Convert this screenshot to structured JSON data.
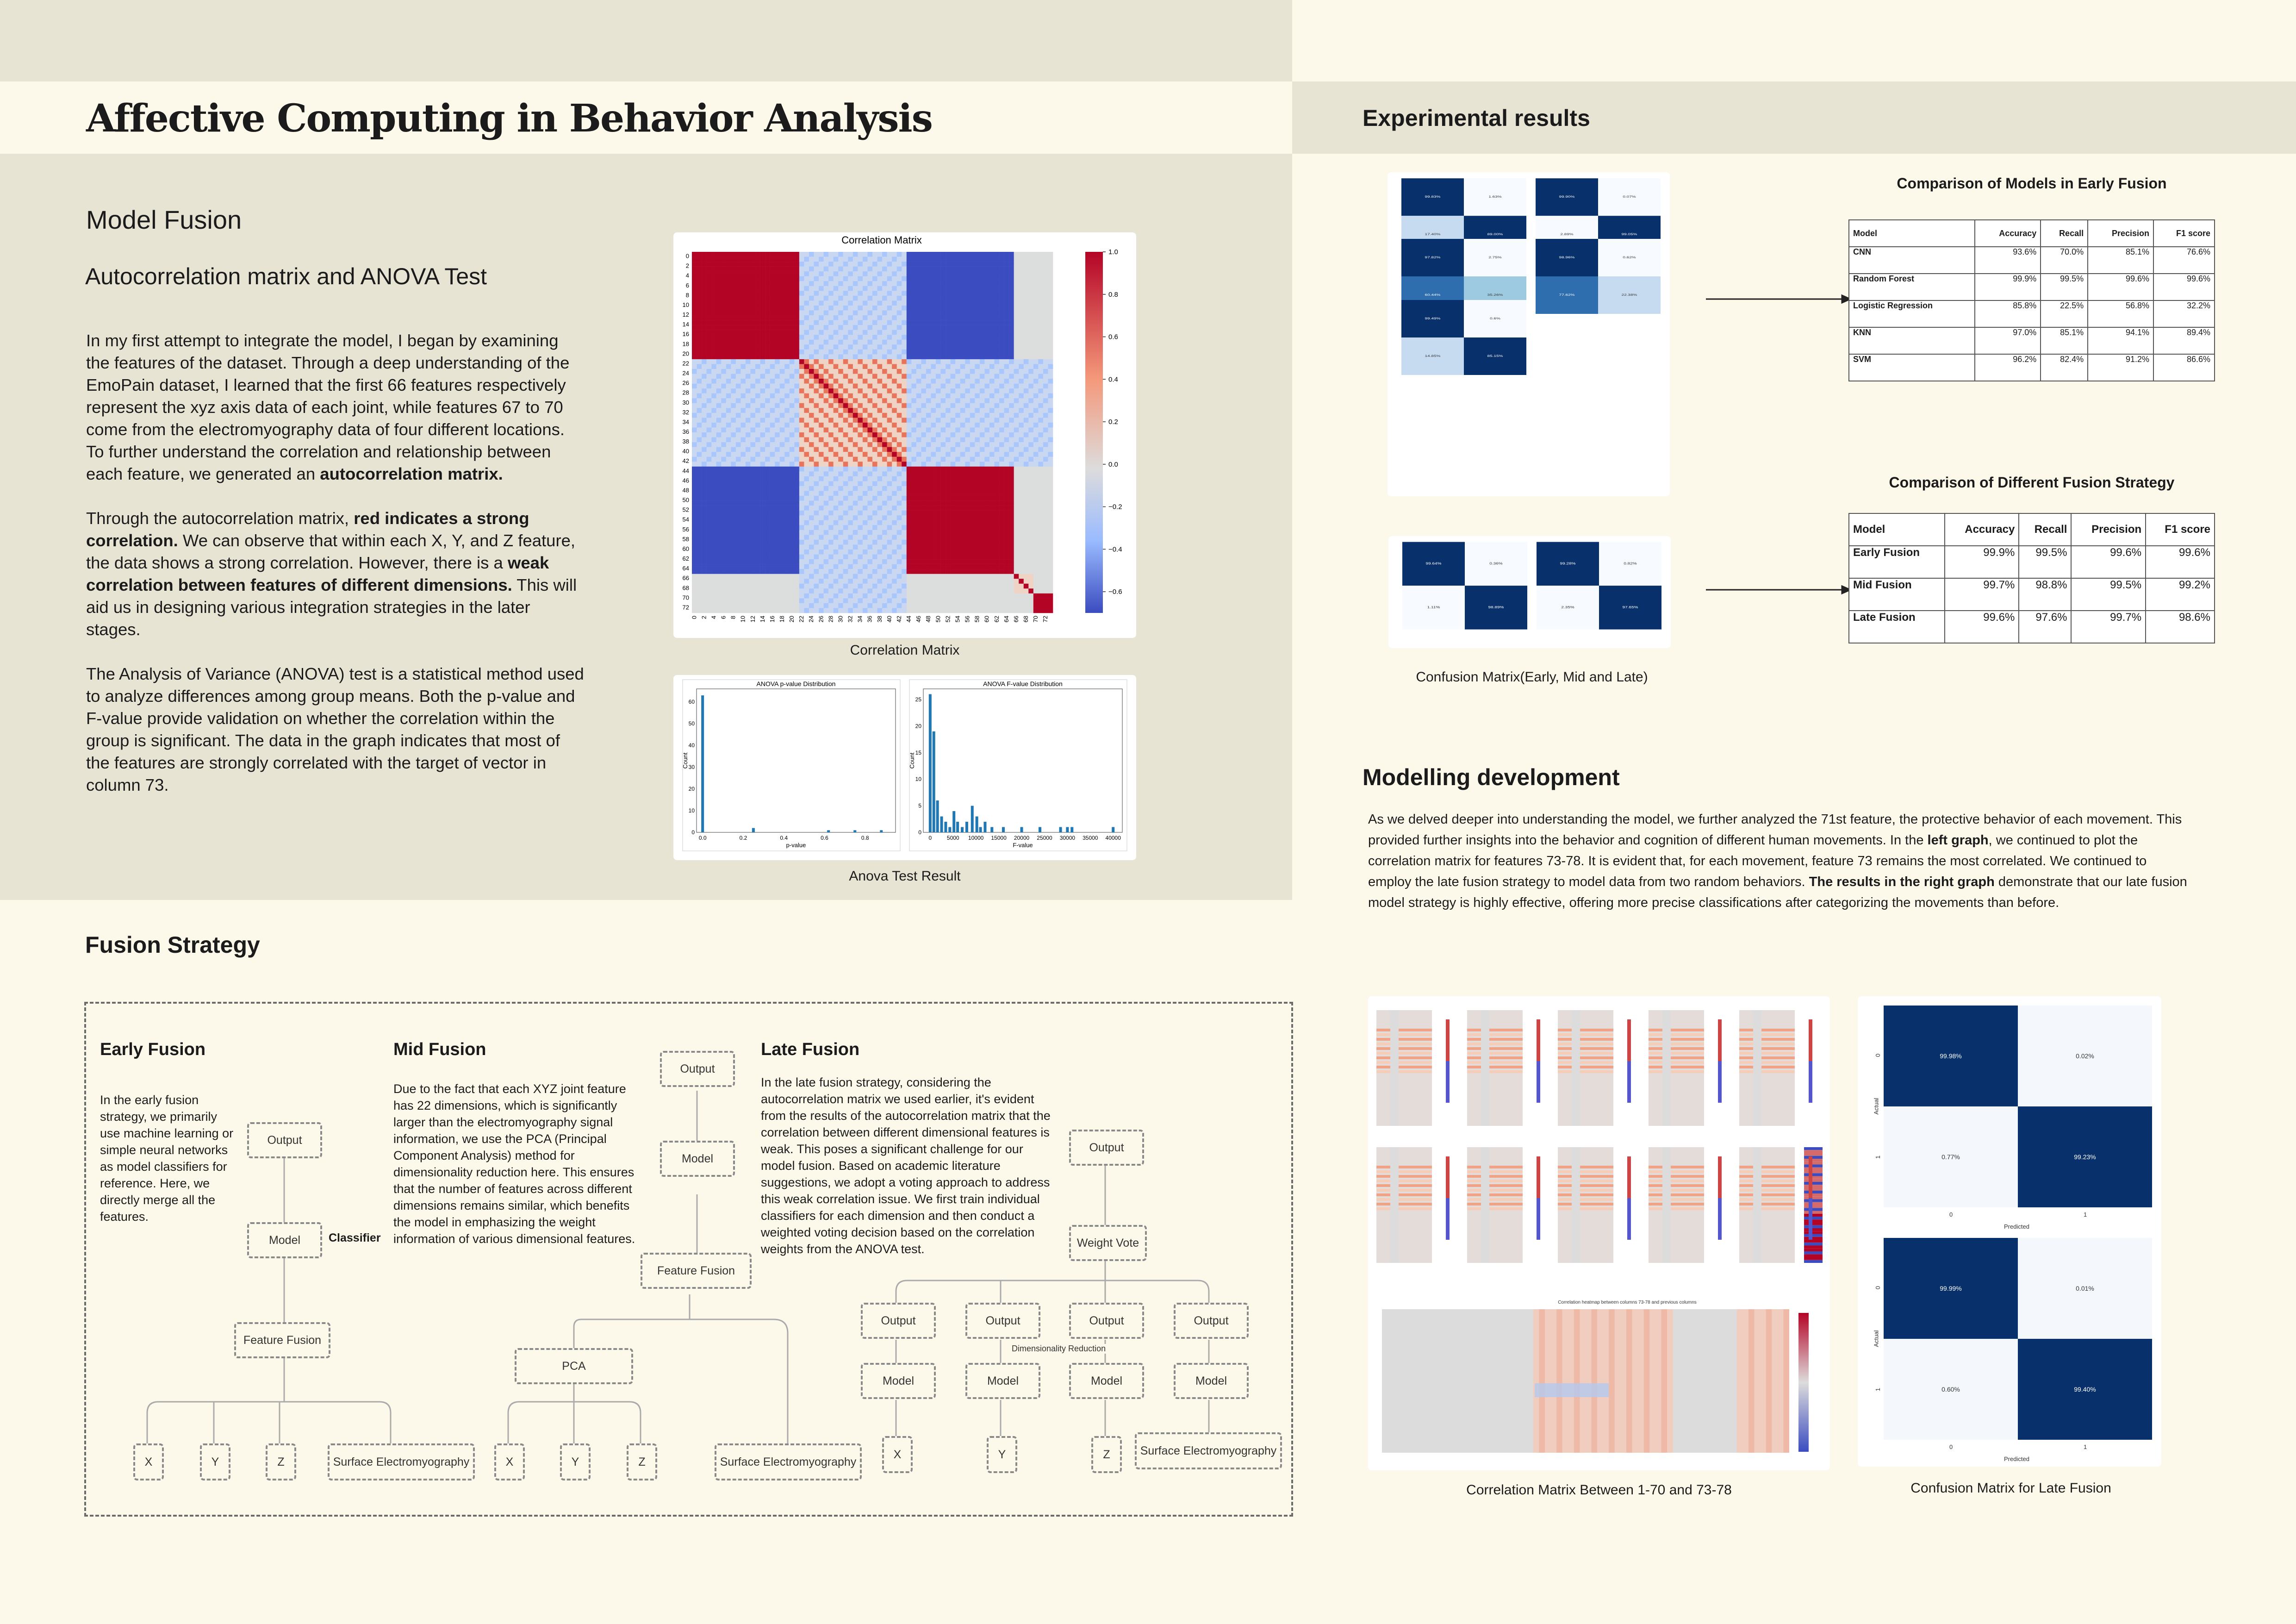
{
  "poster_title": "Affective Computing in Behavior Analysis",
  "model_fusion": {
    "heading": "Model Fusion",
    "subheading": "Autocorrelation matrix and ANOVA Test",
    "p1_pre": "In my first attempt to integrate the model, I began by examining the features of the dataset. Through a deep understanding of the EmoPain dataset, I learned that the first 66 features respectively represent the xyz axis data of each joint, while features 67 to 70 come from the electromyography data of four different locations. To further understand the correlation and relationship between each feature, we generated an ",
    "p1_bold": "autocorrelation matrix.",
    "p2_a": "Through the autocorrelation matrix, ",
    "p2_b": "red indicates a strong correlation.",
    "p2_c": " We can observe that within each X, Y, and Z feature, the data shows a strong correlation. However, there is a ",
    "p2_d": "weak correlation between features of different dimensions.",
    "p2_e": " This will aid us in designing various integration strategies in the later stages.",
    "p3": "The Analysis of Variance (ANOVA) test is a statistical method used to analyze differences among group means. Both the p-value and F-value provide validation on whether the correlation within the group is significant. The data in the graph indicates that most of the features are strongly correlated with the target of vector in column 73.",
    "corr_title": "Correlation Matrix",
    "corr_caption": "Correlation Matrix",
    "anova_caption": "Anova Test Result"
  },
  "chart_data": [
    {
      "type": "heatmap",
      "title": "Correlation Matrix",
      "y_ticks": [
        "0",
        "2",
        "4",
        "6",
        "8",
        "10",
        "12",
        "14",
        "16",
        "18",
        "20",
        "22",
        "24",
        "26",
        "28",
        "30",
        "32",
        "34",
        "36",
        "38",
        "40",
        "42",
        "44",
        "46",
        "48",
        "50",
        "52",
        "54",
        "56",
        "58",
        "60",
        "62",
        "64",
        "66",
        "68",
        "70",
        "72"
      ],
      "x_ticks": [
        "0",
        "2",
        "4",
        "6",
        "8",
        "10",
        "12",
        "14",
        "16",
        "18",
        "20",
        "22",
        "24",
        "26",
        "28",
        "30",
        "32",
        "34",
        "36",
        "38",
        "40",
        "42",
        "44",
        "46",
        "48",
        "50",
        "52",
        "54",
        "56",
        "58",
        "60",
        "62",
        "64",
        "66",
        "68",
        "70",
        "72"
      ],
      "colorbar_ticks": [
        "1.0",
        "0.8",
        "0.6",
        "0.4",
        "0.2",
        "0.0",
        "−0.2",
        "−0.4",
        "−0.6"
      ],
      "colorbar_range": [
        -0.7,
        1.0
      ]
    },
    {
      "type": "bar",
      "title": "ANOVA p-value Distribution",
      "xlabel": "p-value",
      "ylabel": "Count",
      "x_ticks": [
        "0.0",
        "0.2",
        "0.4",
        "0.6",
        "0.8"
      ],
      "y_ticks": [
        "0",
        "10",
        "20",
        "30",
        "40",
        "50",
        "60"
      ],
      "xlim": [
        -0.03,
        0.95
      ],
      "ylim": [
        0,
        66
      ],
      "bins": [
        [
          0.0,
          63
        ],
        [
          0.25,
          2
        ],
        [
          0.62,
          1
        ],
        [
          0.75,
          1
        ],
        [
          0.88,
          1
        ]
      ]
    },
    {
      "type": "bar",
      "title": "ANOVA F-value Distribution",
      "xlabel": "F-value",
      "ylabel": "Count",
      "x_ticks": [
        "0",
        "5000",
        "10000",
        "15000",
        "20000",
        "25000",
        "30000",
        "35000",
        "40000"
      ],
      "y_ticks": [
        "0",
        "5",
        "10",
        "15",
        "20",
        "25"
      ],
      "xlim": [
        -1500,
        42000
      ],
      "ylim": [
        0,
        27
      ],
      "bins": [
        [
          0,
          26
        ],
        [
          800,
          19
        ],
        [
          1600,
          6
        ],
        [
          2500,
          3
        ],
        [
          3400,
          2
        ],
        [
          4300,
          1
        ],
        [
          5200,
          4
        ],
        [
          6000,
          2
        ],
        [
          7000,
          1
        ],
        [
          8000,
          2
        ],
        [
          9200,
          5
        ],
        [
          10200,
          3
        ],
        [
          11000,
          1
        ],
        [
          12000,
          2
        ],
        [
          13500,
          1
        ],
        [
          16000,
          1
        ],
        [
          20000,
          1
        ],
        [
          24000,
          1
        ],
        [
          28500,
          1
        ],
        [
          30000,
          1
        ],
        [
          31000,
          1
        ],
        [
          40000,
          1
        ]
      ]
    }
  ],
  "fusion_strategy": {
    "heading": "Fusion Strategy",
    "early": {
      "title": "Early Fusion",
      "text": "In the early fusion strategy, we primarily use machine learning or simple neural networks as model classifiers for reference. Here, we directly merge all the features.",
      "output": "Output",
      "model": "Model",
      "classifier": "Classifier",
      "feature_fusion": "Feature Fusion",
      "inputs": [
        "X",
        "Y",
        "Z",
        "Surface Electromyography"
      ]
    },
    "mid": {
      "title": "Mid Fusion",
      "text": "Due to the fact that each XYZ joint feature has 22 dimensions, which is significantly larger than the electromyography signal information, we use the PCA (Principal Component Analysis) method for dimensionality reduction here. This ensures that the number of features across different dimensions remains similar, which benefits the model in emphasizing the weight information of various dimensional features.",
      "output": "Output",
      "model": "Model",
      "feature_fusion": "Feature Fusion",
      "pca": "PCA",
      "inputs": [
        "X",
        "Y",
        "Z",
        "Surface Electromyography"
      ]
    },
    "late": {
      "title": "Late Fusion",
      "text": "In the late fusion strategy, considering the autocorrelation matrix we used earlier, it's evident from the results of the autocorrelation matrix that the correlation between different dimensional features is weak. This poses a significant challenge for our model fusion. Based on academic literature suggestions, we adopt a voting approach to address this weak correlation issue. We first train individual classifiers for each dimension and then conduct a weighted voting decision based on the correlation weights from the ANOVA test.",
      "output": "Output",
      "weight_vote": "Weight Vote",
      "dim_reduction": "Dimensionality Reduction",
      "outputs": [
        "Output",
        "Output",
        "Output",
        "Output"
      ],
      "models": [
        "Model",
        "Model",
        "Model",
        "Model"
      ],
      "inputs": [
        "X",
        "Y",
        "Z",
        "Surface Electromyography"
      ]
    }
  },
  "experimental": {
    "heading": "Experimental results",
    "table1_title": "Comparison of Models in Early Fusion",
    "table1_headers": [
      "Model",
      "Accuracy",
      "Recall",
      "Precision",
      "F1 score"
    ],
    "table1_rows": [
      [
        "CNN",
        "93.6%",
        "70.0%",
        "85.1%",
        "76.6%"
      ],
      [
        "Random Forest",
        "99.9%",
        "99.5%",
        "99.6%",
        "99.6%"
      ],
      [
        "Logistic Regression",
        "85.8%",
        "22.5%",
        "56.8%",
        "32.2%"
      ],
      [
        "KNN",
        "97.0%",
        "85.1%",
        "94.1%",
        "89.4%"
      ],
      [
        "SVM",
        "96.2%",
        "82.4%",
        "91.2%",
        "86.6%"
      ]
    ],
    "table2_title": "Comparison of Different Fusion Strategy",
    "table2_headers": [
      "Model",
      "Accuracy",
      "Recall",
      "Precision",
      "F1 score"
    ],
    "table2_rows": [
      [
        "Early Fusion",
        "99.9%",
        "99.5%",
        "99.6%",
        "99.6%"
      ],
      [
        "Mid Fusion",
        "99.7%",
        "98.8%",
        "99.5%",
        "99.2%"
      ],
      [
        "Late Fusion",
        "99.6%",
        "97.6%",
        "99.7%",
        "98.6%"
      ]
    ],
    "cm_caption": "Confusion Matrix(Early, Mid and Late)",
    "cm_small": {
      "predicted": "Predicted",
      "actual": "Actual",
      "m1": [
        "99.83%",
        "1.63%",
        "17.40%",
        "89.00%"
      ],
      "m2": [
        "99.90%",
        "0.07%",
        "2.89%",
        "99.05%"
      ],
      "m3": [
        "97.82%",
        "2.75%",
        "60.44%",
        "35.26%"
      ],
      "m4": [
        "98.96%",
        "0.62%",
        "77.62%",
        "22.38%"
      ],
      "m5": [
        "99.49%",
        "0.6%",
        "14.85%",
        "85.15%"
      ],
      "m6": [
        "99.64%",
        "0.36%",
        "1.11%",
        "98.89%"
      ],
      "m7": [
        "99.28%",
        "0.82%",
        "2.35%",
        "97.65%"
      ]
    }
  },
  "modelling": {
    "heading": "Modelling development",
    "t1": "As we delved deeper into understanding the model, we further analyzed the 71st feature, the protective behavior of each movement. This provided further insights into the behavior and cognition of different human movements. In the ",
    "t2": "left graph",
    "t3": ", we continued to plot the correlation matrix for features 73-78. It is evident that, for each movement, feature 73 remains the most correlated. We continued to employ the late fusion strategy to model data from two random behaviors. ",
    "t4": "The results in the right graph",
    "t5": " demonstrate that our late fusion model strategy is highly effective, offering more precise classifications after categorizing the movements than before.",
    "heat_title": "Correlation heatmap between columns 73-78 and previous columns",
    "left_caption": "Correlation Matrix Between 1-70 and 73-78",
    "right_caption": "Confusion Matrix for Late Fusion",
    "cm_a": [
      "99.98%",
      "0.02%",
      "0.77%",
      "99.23%"
    ],
    "cm_b": [
      "99.99%",
      "0.01%",
      "0.60%",
      "99.40%"
    ],
    "cm_labels": {
      "zero": "0",
      "one": "1",
      "predicted": "Predicted",
      "actual": "Actual"
    }
  },
  "colors": {
    "band": "#e8e4d4",
    "bg": "#fdf9ea",
    "red": "#b5102a",
    "blue": "#3b4cc0",
    "navy": "#08306b"
  }
}
